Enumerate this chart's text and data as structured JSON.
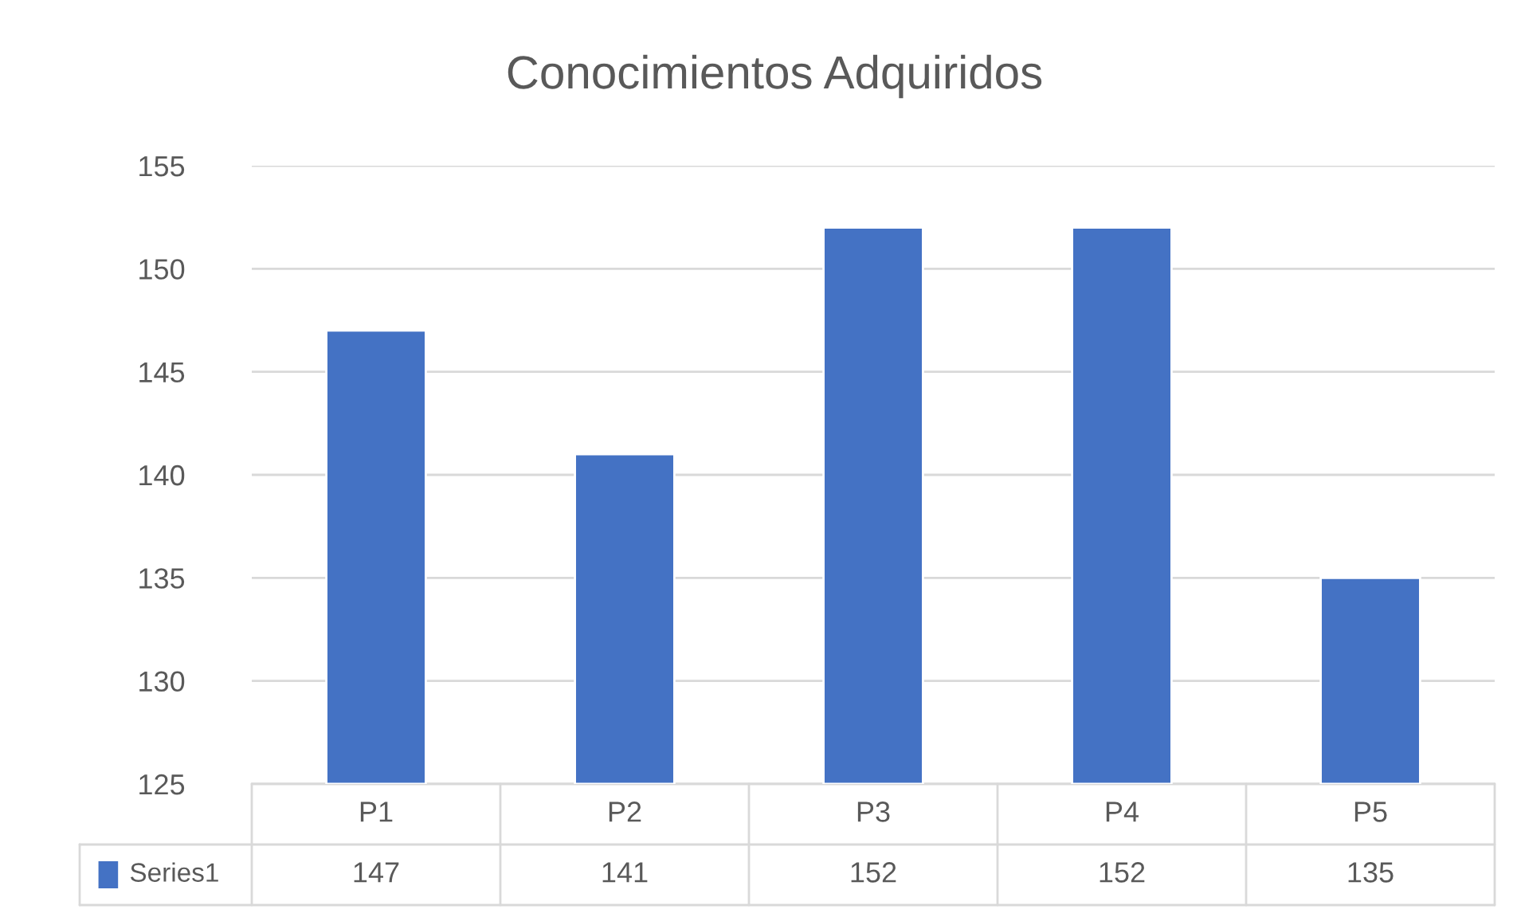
{
  "chart_data": {
    "type": "bar",
    "title": "Conocimientos Adquiridos",
    "categories": [
      "P1",
      "P2",
      "P3",
      "P4",
      "P5"
    ],
    "series": [
      {
        "name": "Series1",
        "color": "#4472c4",
        "values": [
          147,
          141,
          152,
          152,
          135
        ]
      }
    ],
    "ylim": [
      125,
      155
    ],
    "yticks": [
      125,
      130,
      135,
      140,
      145,
      150,
      155
    ],
    "grid": "y",
    "legend": "bottom",
    "data_labels": true
  }
}
